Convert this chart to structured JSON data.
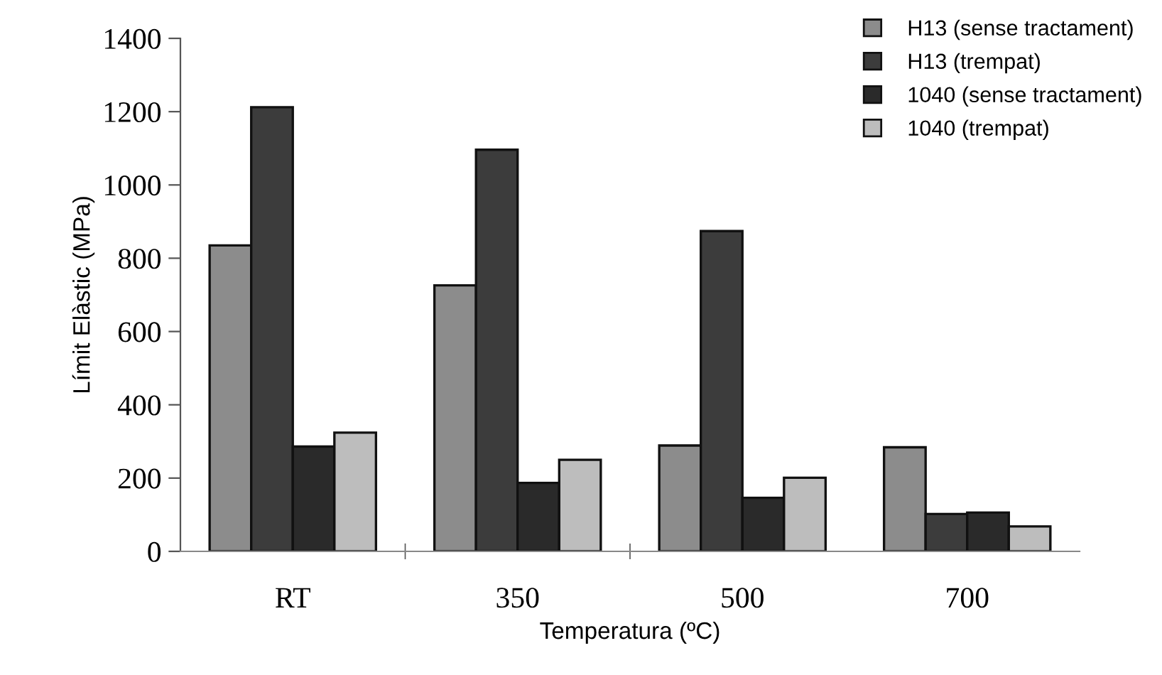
{
  "chart_data": {
    "type": "bar",
    "xlabel": "Temperatura (ºC)",
    "ylabel": "Límit Elàstic (MPa)",
    "categories": [
      "RT",
      "350",
      "500",
      "700"
    ],
    "series": [
      {
        "name": "H13 (sense tractament)",
        "color": "#8c8c8c",
        "values": [
          835,
          726,
          289,
          284
        ]
      },
      {
        "name": "H13 (trempat)",
        "color": "#3c3c3c",
        "values": [
          1212,
          1096,
          874,
          102
        ]
      },
      {
        "name": "1040 (sense tractament)",
        "color": "#2a2a2a",
        "values": [
          286,
          187,
          146,
          106
        ]
      },
      {
        "name": "1040 (trempat)",
        "color": "#bdbdbd",
        "values": [
          324,
          250,
          201,
          68
        ]
      }
    ],
    "ylim": [
      0,
      1400
    ],
    "yticks": [
      0,
      200,
      400,
      600,
      800,
      1000,
      1200,
      1400
    ],
    "grid": false,
    "legend": "top right"
  }
}
